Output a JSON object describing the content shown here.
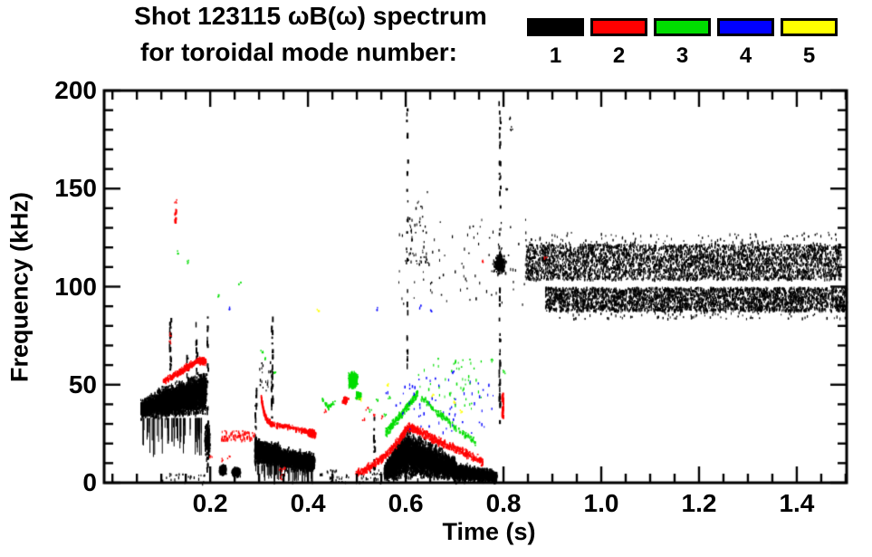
{
  "legend": {
    "items": [
      {
        "label": "1",
        "color": "#000000"
      },
      {
        "label": "2",
        "color": "#ff0000"
      },
      {
        "label": "3",
        "color": "#00dd00"
      },
      {
        "label": "4",
        "color": "#0000ff"
      },
      {
        "label": "5",
        "color": "#ffff00"
      }
    ]
  },
  "chart_data": {
    "type": "scatter",
    "title_line1": "Shot 123115 ωB(ω) spectrum",
    "title_line2": "for toroidal mode number:",
    "xlabel": "Time (s)",
    "ylabel": "Frequency (kHz)",
    "legend_labels": [
      "1",
      "2",
      "3",
      "4",
      "5"
    ],
    "axes": {
      "x_min": -0.017,
      "x_max": 1.502,
      "y_min": 0,
      "y_max": 200,
      "x_minor_step": 0.05,
      "y_minor_step": 10,
      "x_ticks": [
        {
          "v": 0.2,
          "label": "0.2"
        },
        {
          "v": 0.4,
          "label": "0.4"
        },
        {
          "v": 0.6,
          "label": "0.6"
        },
        {
          "v": 0.8,
          "label": "0.8"
        },
        {
          "v": 1.0,
          "label": "1.0"
        },
        {
          "v": 1.2,
          "label": "1.2"
        },
        {
          "v": 1.4,
          "label": "1.4"
        }
      ],
      "y_ticks": [
        {
          "v": 0,
          "label": "0"
        },
        {
          "v": 50,
          "label": "50"
        },
        {
          "v": 100,
          "label": "100"
        },
        {
          "v": 150,
          "label": "150"
        },
        {
          "v": 200,
          "label": "200"
        }
      ]
    },
    "modes": [
      {
        "mode": 1,
        "color": "#000000",
        "clusters": [
          {
            "type": "blob",
            "t": [
              0.057,
              0.092
            ],
            "fc": [
              38,
              41
            ],
            "half": [
              6,
              8
            ],
            "n": 650
          },
          {
            "type": "blob",
            "t": [
              0.092,
              0.19
            ],
            "fc": [
              41,
              47
            ],
            "half": [
              9,
              12
            ],
            "n": 2800
          },
          {
            "type": "hairs",
            "t": [
              0.06,
              0.19
            ],
            "f_top": 33,
            "len": [
              4,
              20
            ],
            "n": 60
          },
          {
            "type": "hband",
            "t": [
              0.1,
              0.19
            ],
            "f": [
              0,
              5
            ],
            "n": 28
          },
          {
            "type": "vline",
            "t": 0.117,
            "f": [
              58,
              85
            ],
            "n": 22
          },
          {
            "type": "vline",
            "t": 0.152,
            "f": [
              52,
              66
            ],
            "n": 8
          },
          {
            "type": "vline",
            "t": 0.171,
            "f": [
              55,
              82
            ],
            "n": 10
          },
          {
            "type": "vline",
            "t": 0.193,
            "f": [
              2,
              85
            ],
            "n": 34
          },
          {
            "type": "blob",
            "t": [
              0.188,
              0.198
            ],
            "fc": [
              22,
              22
            ],
            "half": [
              11,
              11
            ],
            "n": 140
          },
          {
            "type": "ellipse",
            "c": [
              0.225,
              7
            ],
            "rt": 0.009,
            "rf": 3.2,
            "n": 240
          },
          {
            "type": "ellipse",
            "c": [
              0.252,
              6
            ],
            "rt": 0.011,
            "rf": 2.8,
            "n": 280
          },
          {
            "type": "vline",
            "t": 0.292,
            "f": [
              10,
              50
            ],
            "n": 16
          },
          {
            "type": "blob",
            "t": [
              0.29,
              0.345
            ],
            "fc": [
              17,
              14
            ],
            "half": [
              8,
              7
            ],
            "n": 1600
          },
          {
            "type": "blob",
            "t": [
              0.345,
              0.412
            ],
            "fc": [
              13,
              11
            ],
            "half": [
              7,
              5
            ],
            "n": 1350
          },
          {
            "type": "hairs",
            "t": [
              0.29,
              0.41
            ],
            "f_top": 9,
            "len": [
              3,
              10
            ],
            "n": 55
          },
          {
            "type": "vline",
            "t": 0.325,
            "f": [
              33,
              86
            ],
            "n": 30
          },
          {
            "type": "hband",
            "t": [
              0.3,
              0.33
            ],
            "f": [
              45,
              62
            ],
            "n": 18
          },
          {
            "type": "hband",
            "t": [
              0.42,
              0.55
            ],
            "f": [
              0,
              7
            ],
            "n": 55
          },
          {
            "type": "vline",
            "t": 0.534,
            "f": [
              2,
              36
            ],
            "n": 16
          },
          {
            "type": "blob",
            "t": [
              0.555,
              0.605
            ],
            "fc": [
              6,
              17
            ],
            "half": [
              5,
              16
            ],
            "n": 1500
          },
          {
            "type": "blob",
            "t": [
              0.605,
              0.7
            ],
            "fc": [
              15,
              8
            ],
            "half": [
              14,
              7
            ],
            "n": 2600
          },
          {
            "type": "blob",
            "t": [
              0.7,
              0.785
            ],
            "fc": [
              6,
              4
            ],
            "half": [
              6,
              3.5
            ],
            "n": 1100
          },
          {
            "type": "vline",
            "t": 0.602,
            "f": [
              40,
              196
            ],
            "n": 22
          },
          {
            "type": "hband",
            "t": [
              0.598,
              0.648
            ],
            "f": [
              112,
              150
            ],
            "n": 45
          },
          {
            "type": "hband",
            "t": [
              0.56,
              0.845
            ],
            "f": [
              90,
              135
            ],
            "n": 95
          },
          {
            "type": "ellipse",
            "c": [
              0.79,
              112
            ],
            "rt": 0.015,
            "rf": 6.5,
            "n": 210
          },
          {
            "type": "vline",
            "t": 0.791,
            "f": [
              30,
              196
            ],
            "n": 60
          },
          {
            "type": "dots",
            "pts": [
              [
                0.81,
                186
              ],
              [
                0.815,
                181
              ],
              [
                0.805,
                150
              ]
            ]
          },
          {
            "type": "hband",
            "t": [
              0.845,
              1.49
            ],
            "f": [
              104,
              122
            ],
            "n": 3900
          },
          {
            "type": "hband",
            "t": [
              0.885,
              1.502
            ],
            "f": [
              88,
              100
            ],
            "n": 3300
          },
          {
            "type": "hband",
            "t": [
              0.85,
              1.48
            ],
            "f": [
              122,
              128
            ],
            "n": 110
          },
          {
            "type": "hband",
            "t": [
              0.9,
              1.5
            ],
            "f": [
              84,
              88
            ],
            "n": 90
          }
        ]
      },
      {
        "mode": 2,
        "color": "#ff0000",
        "clusters": [
          {
            "type": "path",
            "pts": [
              [
                0.103,
                52
              ],
              [
                0.13,
                56
              ],
              [
                0.155,
                60
              ],
              [
                0.175,
                63
              ],
              [
                0.19,
                62
              ]
            ],
            "w": 2.2,
            "n": 420
          },
          {
            "type": "vline",
            "t": 0.128,
            "f": [
              133,
              141
            ],
            "n": 12
          },
          {
            "type": "dots",
            "pts": [
              [
                0.128,
                144
              ],
              [
                0.117,
                76
              ],
              [
                0.118,
                72
              ]
            ]
          },
          {
            "type": "hband",
            "t": [
              0.222,
              0.29
            ],
            "f": [
              22,
              27
            ],
            "n": 80
          },
          {
            "type": "dots",
            "pts": [
              [
                0.2,
                14
              ],
              [
                0.225,
                12
              ],
              [
                0.237,
                13
              ]
            ]
          },
          {
            "type": "path",
            "pts": [
              [
                0.303,
                44
              ],
              [
                0.308,
                37
              ],
              [
                0.316,
                32
              ],
              [
                0.33,
                30
              ],
              [
                0.36,
                29
              ],
              [
                0.39,
                27
              ],
              [
                0.415,
                25
              ]
            ],
            "w": 1.8,
            "n": 360
          },
          {
            "type": "ellipse",
            "c": [
              0.405,
              26
            ],
            "rt": 0.011,
            "rf": 2.4,
            "n": 110
          },
          {
            "type": "dots",
            "pts": [
              [
                0.343,
                7
              ],
              [
                0.345,
                3
              ],
              [
                0.348,
                5
              ],
              [
                0.351,
                8
              ]
            ]
          },
          {
            "type": "ellipse",
            "c": [
              0.475,
              42.5
            ],
            "rt": 0.008,
            "rf": 2.2,
            "n": 60
          },
          {
            "type": "dots",
            "pts": [
              [
                0.433,
                37
              ],
              [
                0.512,
                33
              ],
              [
                0.52,
                38
              ],
              [
                0.536,
                35
              ],
              [
                0.552,
                34
              ]
            ]
          },
          {
            "type": "path",
            "pts": [
              [
                0.497,
                5
              ],
              [
                0.53,
                9
              ],
              [
                0.56,
                15
              ],
              [
                0.585,
                22
              ],
              [
                0.603,
                29
              ],
              [
                0.625,
                27
              ],
              [
                0.655,
                23
              ],
              [
                0.69,
                19
              ],
              [
                0.725,
                15
              ],
              [
                0.757,
                11
              ]
            ],
            "w": 2.8,
            "n": 850
          },
          {
            "type": "vline",
            "t": 0.797,
            "f": [
              34,
              48
            ],
            "n": 30
          },
          {
            "type": "dots",
            "pts": [
              [
                0.756,
                113
              ],
              [
                0.885,
                115
              ]
            ]
          }
        ]
      },
      {
        "mode": 3,
        "color": "#00dd00",
        "clusters": [
          {
            "type": "dots",
            "pts": [
              [
                0.133,
                118
              ],
              [
                0.152,
                113
              ],
              [
                0.215,
                96
              ],
              [
                0.26,
                102
              ]
            ]
          },
          {
            "type": "dots",
            "pts": [
              [
                0.305,
                67
              ],
              [
                0.312,
                64
              ],
              [
                0.332,
                57
              ]
            ]
          },
          {
            "type": "path",
            "pts": [
              [
                0.428,
                43
              ],
              [
                0.44,
                39
              ],
              [
                0.456,
                42
              ]
            ],
            "w": 1.2,
            "n": 36
          },
          {
            "type": "ellipse",
            "c": [
              0.49,
              53
            ],
            "rt": 0.011,
            "rf": 5,
            "n": 460
          },
          {
            "type": "ellipse",
            "c": [
              0.502,
              45
            ],
            "rt": 0.007,
            "rf": 2.5,
            "n": 70
          },
          {
            "type": "dots",
            "pts": [
              [
                0.527,
                37
              ],
              [
                0.541,
                42
              ],
              [
                0.556,
                35
              ],
              [
                0.566,
                44
              ]
            ]
          },
          {
            "type": "path",
            "pts": [
              [
                0.558,
                26
              ],
              [
                0.582,
                33
              ],
              [
                0.603,
                40
              ],
              [
                0.623,
                46
              ]
            ],
            "w": 3.2,
            "n": 230
          },
          {
            "type": "path",
            "pts": [
              [
                0.63,
                44
              ],
              [
                0.66,
                37
              ],
              [
                0.69,
                31
              ],
              [
                0.72,
                25
              ],
              [
                0.742,
                21
              ]
            ],
            "w": 2.6,
            "n": 150
          },
          {
            "type": "hband",
            "t": [
              0.62,
              0.76
            ],
            "f": [
              38,
              65
            ],
            "n": 50
          },
          {
            "type": "dots",
            "pts": [
              [
                0.775,
                63
              ],
              [
                0.8,
                57
              ]
            ]
          }
        ]
      },
      {
        "mode": 4,
        "color": "#0000ff",
        "clusters": [
          {
            "type": "hband",
            "t": [
              0.6,
              0.78
            ],
            "f": [
              25,
              55
            ],
            "n": 55
          },
          {
            "type": "hband",
            "t": [
              0.55,
              0.6
            ],
            "f": [
              35,
              50
            ],
            "n": 8
          },
          {
            "type": "dots",
            "pts": [
              [
                0.24,
                89
              ],
              [
                0.54,
                89
              ],
              [
                0.63,
                90
              ],
              [
                0.652,
                88
              ],
              [
                0.695,
                57
              ]
            ]
          }
        ]
      },
      {
        "mode": 5,
        "color": "#ffff00",
        "clusters": [
          {
            "type": "dots",
            "pts": [
              [
                0.42,
                88
              ],
              [
                0.505,
                43
              ],
              [
                0.562,
                50
              ],
              [
                0.655,
                45
              ],
              [
                0.7,
                41
              ],
              [
                0.712,
                37
              ]
            ]
          }
        ]
      }
    ]
  }
}
